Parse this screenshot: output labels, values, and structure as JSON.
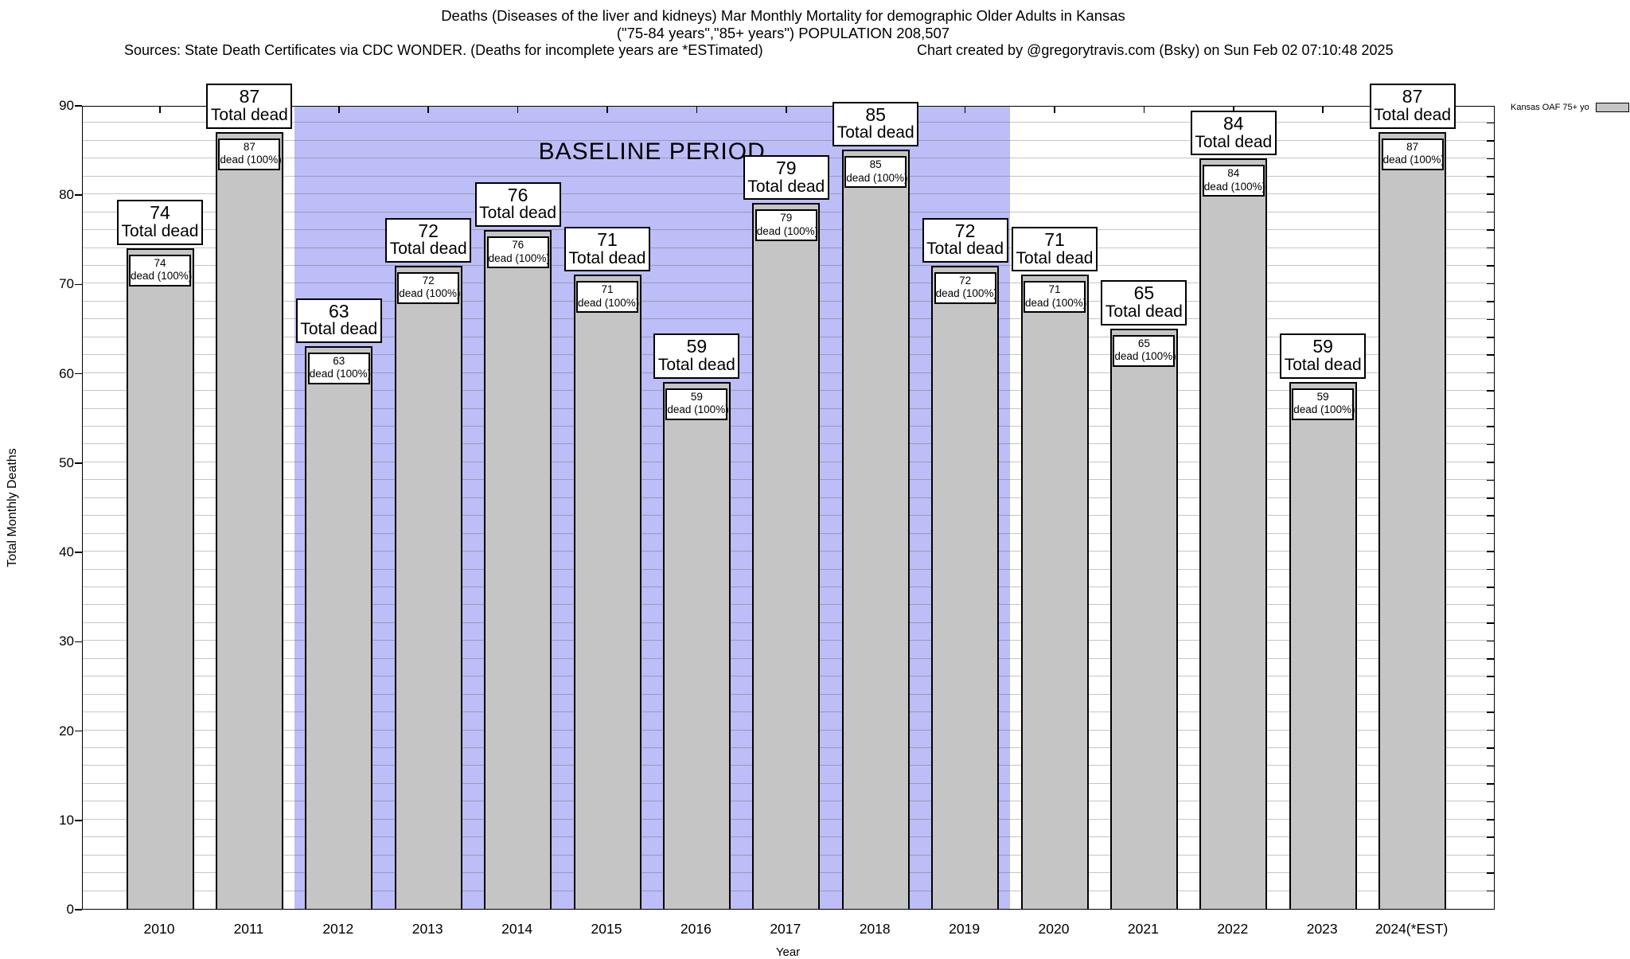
{
  "header": {
    "title_line1": "Deaths (Diseases of the liver and kidneys) Mar Monthly Mortality for demographic Older Adults in Kansas",
    "title_line2": "(\"75-84 years\",\"85+ years\") POPULATION 208,507",
    "sources_line": "Sources: State Death Certificates via CDC WONDER. (Deaths for incomplete years are *ESTimated)",
    "credit_line": "Chart created by @gregorytravis.com (Bsky) on Sun Feb 02 07:10:48 2025"
  },
  "legend": {
    "label": "Kansas OAF 75+ yo",
    "swatch_color": "#c5c5c5"
  },
  "chart_data": {
    "type": "bar",
    "title": "Deaths (Diseases of the liver and kidneys) Mar Monthly Mortality for demographic Older Adults in Kansas",
    "xlabel": "Year",
    "ylabel": "Total Monthly Deaths",
    "ylim": [
      0,
      90
    ],
    "ytick_step": 10,
    "grid_step": 2,
    "grid": "on",
    "legend_position": "top-right-outside",
    "series_name": "Kansas OAF 75+ yo",
    "bar_color": "#c5c5c5",
    "categories": [
      "2010",
      "2011",
      "2012",
      "2013",
      "2014",
      "2015",
      "2016",
      "2017",
      "2018",
      "2019",
      "2020",
      "2021",
      "2022",
      "2023",
      "2024(*EST)"
    ],
    "values": [
      74,
      87,
      63,
      72,
      76,
      71,
      59,
      79,
      85,
      72,
      71,
      65,
      84,
      59,
      87
    ],
    "bar_label_top_line2": "Total dead",
    "bar_label_inner_line2": "dead (100%)",
    "baseline_region": {
      "label": "BASELINE PERIOD",
      "start_category": "2012",
      "end_category": "2019",
      "start_index": 2,
      "end_index": 9,
      "color": "#bdbdf7"
    }
  }
}
